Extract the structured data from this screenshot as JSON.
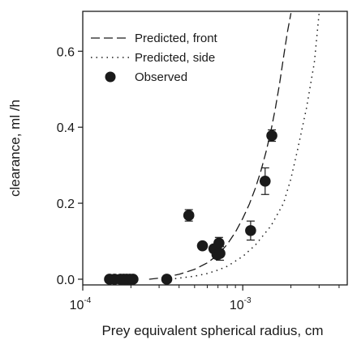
{
  "chart_data": {
    "type": "scatter",
    "xlabel": "Prey equivalent spherical radius, cm",
    "ylabel": "clearance, ml /h",
    "xscale": "log",
    "xlim": [
      0.0001,
      0.0045
    ],
    "ylim": [
      -0.015,
      0.705
    ],
    "grid": false,
    "legend_position": "top-left",
    "x_ticks": [
      {
        "value": 0.0001,
        "base": "10",
        "exp": "-4"
      },
      {
        "value": 0.001,
        "base": "10",
        "exp": "-3"
      }
    ],
    "y_ticks": [
      {
        "value": 0.0,
        "label": "0.0"
      },
      {
        "value": 0.2,
        "label": "0.2"
      },
      {
        "value": 0.4,
        "label": "0.4"
      },
      {
        "value": 0.6,
        "label": "0.6"
      }
    ],
    "series": [
      {
        "name": "Predicted, front",
        "kind": "line",
        "dash": "long-dash",
        "x": [
          0.00026,
          0.0003,
          0.00035,
          0.0004,
          0.0005,
          0.0006,
          0.0007,
          0.0008,
          0.0009,
          0.001,
          0.0011,
          0.0012,
          0.0013,
          0.0014,
          0.0015,
          0.0016,
          0.0017,
          0.0018,
          0.0019,
          0.002
        ],
        "y": [
          0.0,
          0.003,
          0.008,
          0.013,
          0.026,
          0.043,
          0.064,
          0.092,
          0.124,
          0.16,
          0.198,
          0.24,
          0.286,
          0.336,
          0.39,
          0.45,
          0.515,
          0.585,
          0.65,
          0.7
        ]
      },
      {
        "name": "Predicted, side",
        "kind": "line",
        "dash": "dotted",
        "x": [
          0.00035,
          0.0004,
          0.0005,
          0.0006,
          0.0007,
          0.0008,
          0.001,
          0.0012,
          0.0015,
          0.0018,
          0.002,
          0.0022,
          0.0025,
          0.0028,
          0.003
        ],
        "y": [
          0.0,
          0.003,
          0.008,
          0.015,
          0.024,
          0.034,
          0.06,
          0.09,
          0.14,
          0.2,
          0.265,
          0.34,
          0.45,
          0.57,
          0.7
        ]
      },
      {
        "name": "Observed",
        "kind": "points",
        "points": [
          {
            "x": 0.000147,
            "y": 0.0,
            "err": 0.0
          },
          {
            "x": 0.000158,
            "y": 0.0,
            "err": 0.0
          },
          {
            "x": 0.000172,
            "y": 0.0,
            "err": 0.0
          },
          {
            "x": 0.00018,
            "y": 0.0,
            "err": 0.0
          },
          {
            "x": 0.000188,
            "y": 0.0,
            "err": 0.0
          },
          {
            "x": 0.000197,
            "y": 0.0,
            "err": 0.0
          },
          {
            "x": 0.000206,
            "y": 0.0,
            "err": 0.0
          },
          {
            "x": 0.000335,
            "y": 0.0,
            "err": 0.0
          },
          {
            "x": 0.00046,
            "y": 0.168,
            "err": 0.015
          },
          {
            "x": 0.00056,
            "y": 0.088,
            "err": 0.0
          },
          {
            "x": 0.00066,
            "y": 0.08,
            "err": 0.0
          },
          {
            "x": 0.00069,
            "y": 0.065,
            "err": 0.01
          },
          {
            "x": 0.00071,
            "y": 0.095,
            "err": 0.015
          },
          {
            "x": 0.00072,
            "y": 0.068,
            "err": 0.018
          },
          {
            "x": 0.00112,
            "y": 0.128,
            "err": 0.025
          },
          {
            "x": 0.00138,
            "y": 0.258,
            "err": 0.035
          },
          {
            "x": 0.00152,
            "y": 0.378,
            "err": 0.015
          }
        ]
      }
    ]
  },
  "colors": {
    "ink": "#1a1a1a",
    "background": "#ffffff"
  }
}
